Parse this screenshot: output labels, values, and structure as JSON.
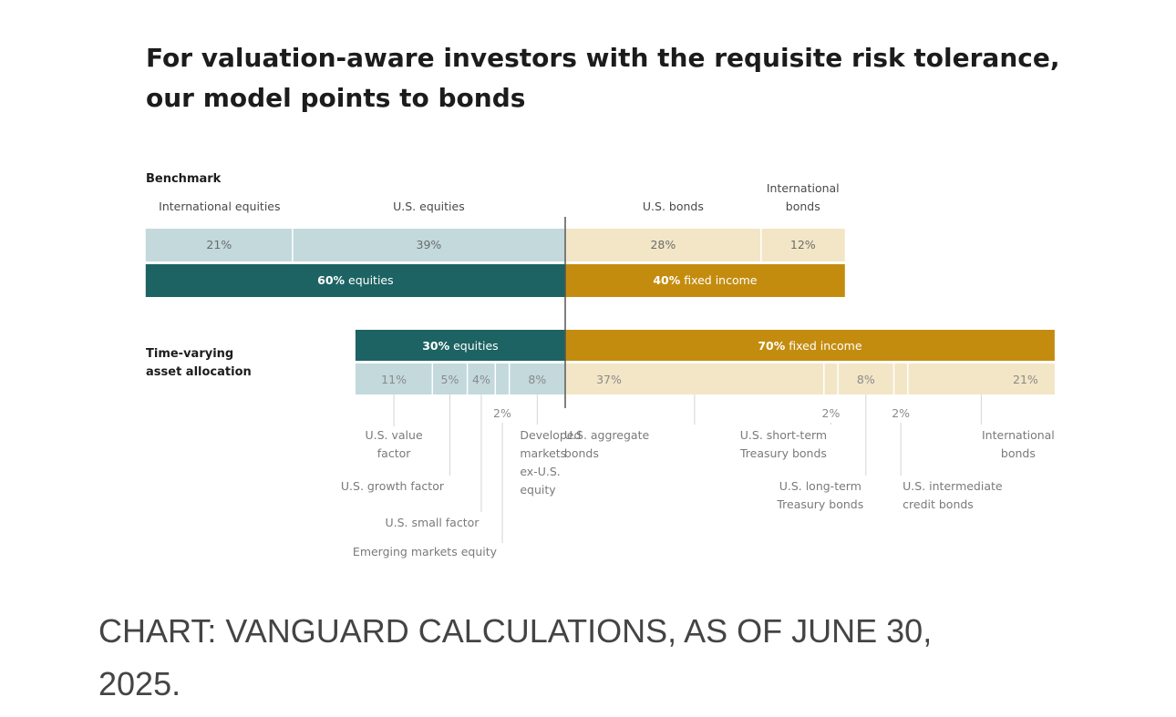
{
  "title": {
    "line1": "For valuation-aware investors with the requisite risk tolerance,",
    "line2": "our model points to bonds"
  },
  "caption": {
    "line1": "CHART: VANGUARD CALCULATIONS, AS OF JUNE 30,",
    "line2": "2025."
  },
  "colors": {
    "equity_dark": "#1d6363",
    "equity_light": "#c3d9dc",
    "fixed_dark": "#c48c0f",
    "fixed_light": "#f3e6c6",
    "text_dark": "#1c1c1c",
    "text_muted": "#5a5a5a",
    "divider": "#555555"
  },
  "chart_data": {
    "type": "bar",
    "orientation": "horizontal-stacked",
    "unit": "%",
    "rows": [
      {
        "label": "Benchmark",
        "summary": [
          {
            "group": "equities",
            "value": 60,
            "bold_text": "60%",
            "label_text": " equities"
          },
          {
            "group": "fixed income",
            "value": 40,
            "bold_text": "40%",
            "label_text": " fixed income"
          }
        ],
        "segments": [
          {
            "category": "International equities",
            "value": 21,
            "value_text": "21%",
            "group": "equities"
          },
          {
            "category": "U.S. equities",
            "value": 39,
            "value_text": "39%",
            "group": "equities"
          },
          {
            "category": "U.S. bonds",
            "value": 28,
            "value_text": "28%",
            "group": "fixed income"
          },
          {
            "category": "International bonds",
            "value": 12,
            "value_text": "12%",
            "group": "fixed income"
          }
        ]
      },
      {
        "label": "Time-varying asset allocation",
        "summary": [
          {
            "group": "equities",
            "value": 30,
            "bold_text": "30%",
            "label_text": " equities"
          },
          {
            "group": "fixed income",
            "value": 70,
            "bold_text": "70%",
            "label_text": " fixed income"
          }
        ],
        "segments": [
          {
            "category": "U.S. value factor",
            "value": 11,
            "value_text": "11%",
            "group": "equities"
          },
          {
            "category": "U.S. growth factor",
            "value": 5,
            "value_text": "5%",
            "group": "equities"
          },
          {
            "category": "U.S. small factor",
            "value": 4,
            "value_text": "4%",
            "group": "equities"
          },
          {
            "category": "Emerging markets equity",
            "value": 2,
            "value_text": "2%",
            "group": "equities"
          },
          {
            "category": "Developed markets ex-U.S. equity",
            "value": 8,
            "value_text": "8%",
            "group": "equities"
          },
          {
            "category": "U.S. aggregate bonds",
            "value": 37,
            "value_text": "37%",
            "group": "fixed income"
          },
          {
            "category": "U.S. short-term Treasury bonds",
            "value": 2,
            "value_text": "2%",
            "group": "fixed income"
          },
          {
            "category": "U.S. long-term Treasury bonds",
            "value": 8,
            "value_text": "8%",
            "group": "fixed income"
          },
          {
            "category": "U.S. intermediate credit bonds",
            "value": 2,
            "value_text": "2%",
            "group": "fixed income"
          },
          {
            "category": "International bonds",
            "value": 21,
            "value_text": "21%",
            "group": "fixed income"
          }
        ]
      }
    ]
  }
}
